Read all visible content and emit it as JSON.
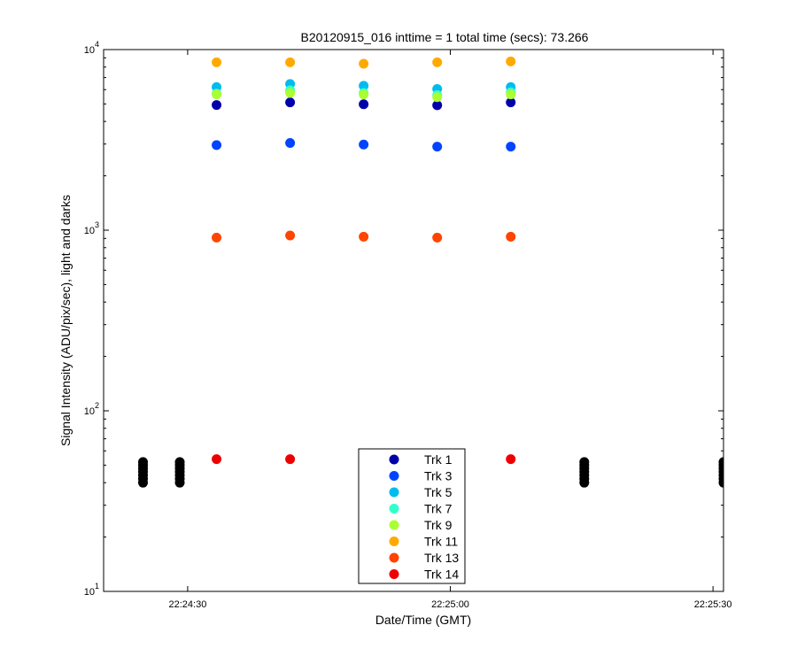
{
  "chart_data": {
    "type": "scatter",
    "title": "B20120915_016 inttime = 1 total time (secs): 73.266",
    "xlabel": "Date/Time (GMT)",
    "ylabel": "Signal Intensity (ADU/pix/sec), light and darks",
    "y_scale": "log",
    "ylim": [
      10,
      10000
    ],
    "xlim": [
      "22:24:20.4",
      "22:25:31.2"
    ],
    "grid": false,
    "x_ticks": [
      {
        "t": "22:24:30",
        "label": "22:24:30"
      },
      {
        "t": "22:25:00",
        "label": "22:25:00"
      },
      {
        "t": "22:25:30",
        "label": "22:25:30"
      }
    ],
    "y_ticks": [
      {
        "v": 10,
        "base": "10",
        "exp": "1"
      },
      {
        "v": 100,
        "base": "10",
        "exp": "2"
      },
      {
        "v": 1000,
        "base": "10",
        "exp": "3"
      },
      {
        "v": 10000,
        "base": "10",
        "exp": "4"
      }
    ],
    "legend_position": "bottom-center",
    "series": [
      {
        "name": "Trk 1",
        "color": "#0000aa",
        "points": [
          [
            "22:24:33.3",
            4930
          ],
          [
            "22:24:41.7",
            5100
          ],
          [
            "22:24:50.1",
            4980
          ],
          [
            "22:24:58.5",
            4920
          ],
          [
            "22:25:06.9",
            5100
          ]
        ]
      },
      {
        "name": "Trk 3",
        "color": "#0044ff",
        "points": [
          [
            "22:24:33.3",
            2960
          ],
          [
            "22:24:41.7",
            3040
          ],
          [
            "22:24:50.1",
            2980
          ],
          [
            "22:24:58.5",
            2900
          ],
          [
            "22:25:06.9",
            2900
          ]
        ]
      },
      {
        "name": "Trk 5",
        "color": "#00bbee",
        "points": [
          [
            "22:24:33.3",
            6200
          ],
          [
            "22:24:41.7",
            6450
          ],
          [
            "22:24:50.1",
            6300
          ],
          [
            "22:24:58.5",
            6050
          ],
          [
            "22:25:06.9",
            6200
          ]
        ]
      },
      {
        "name": "Trk 7",
        "color": "#33ffcc",
        "points": [
          [
            "22:24:33.3",
            5700
          ],
          [
            "22:24:41.7",
            5950
          ],
          [
            "22:24:50.1",
            5750
          ],
          [
            "22:24:58.5",
            5600
          ],
          [
            "22:25:06.9",
            5800
          ]
        ]
      },
      {
        "name": "Trk 9",
        "color": "#aaff33",
        "points": [
          [
            "22:24:33.3",
            5650
          ],
          [
            "22:24:41.7",
            5750
          ],
          [
            "22:24:50.1",
            5650
          ],
          [
            "22:24:58.5",
            5450
          ],
          [
            "22:25:06.9",
            5650
          ]
        ]
      },
      {
        "name": "Trk 11",
        "color": "#ffaa00",
        "points": [
          [
            "22:24:33.3",
            8500
          ],
          [
            "22:24:41.7",
            8500
          ],
          [
            "22:24:50.1",
            8350
          ],
          [
            "22:24:58.5",
            8500
          ],
          [
            "22:25:06.9",
            8600
          ]
        ]
      },
      {
        "name": "Trk 13",
        "color": "#ff4400",
        "points": [
          [
            "22:24:33.3",
            910
          ],
          [
            "22:24:41.7",
            935
          ],
          [
            "22:24:50.1",
            920
          ],
          [
            "22:24:58.5",
            910
          ],
          [
            "22:25:06.9",
            920
          ]
        ]
      },
      {
        "name": "Trk 14",
        "color": "#ee0000",
        "points": [
          [
            "22:24:33.3",
            54
          ],
          [
            "22:24:41.7",
            54
          ],
          [
            "22:24:50.1",
            54
          ],
          [
            "22:24:58.5",
            55
          ],
          [
            "22:25:06.9",
            54
          ]
        ]
      }
    ],
    "dark_points": {
      "color": "#000000",
      "points": [
        [
          "22:24:24.9",
          40
        ],
        [
          "22:24:24.9",
          42
        ],
        [
          "22:24:24.9",
          44
        ],
        [
          "22:24:24.9",
          46
        ],
        [
          "22:24:24.9",
          48
        ],
        [
          "22:24:24.9",
          50
        ],
        [
          "22:24:24.9",
          52
        ],
        [
          "22:24:29.1",
          40
        ],
        [
          "22:24:29.1",
          42
        ],
        [
          "22:24:29.1",
          44
        ],
        [
          "22:24:29.1",
          46
        ],
        [
          "22:24:29.1",
          48
        ],
        [
          "22:24:29.1",
          50
        ],
        [
          "22:24:29.1",
          52
        ],
        [
          "22:25:15.3",
          40
        ],
        [
          "22:25:15.3",
          42
        ],
        [
          "22:25:15.3",
          44
        ],
        [
          "22:25:15.3",
          46
        ],
        [
          "22:25:15.3",
          48
        ],
        [
          "22:25:15.3",
          50
        ],
        [
          "22:25:15.3",
          52
        ],
        [
          "22:25:31.2",
          40
        ],
        [
          "22:25:31.2",
          42
        ],
        [
          "22:25:31.2",
          44
        ],
        [
          "22:25:31.2",
          46
        ],
        [
          "22:25:31.2",
          48
        ],
        [
          "22:25:31.2",
          50
        ],
        [
          "22:25:31.2",
          52
        ]
      ]
    }
  }
}
